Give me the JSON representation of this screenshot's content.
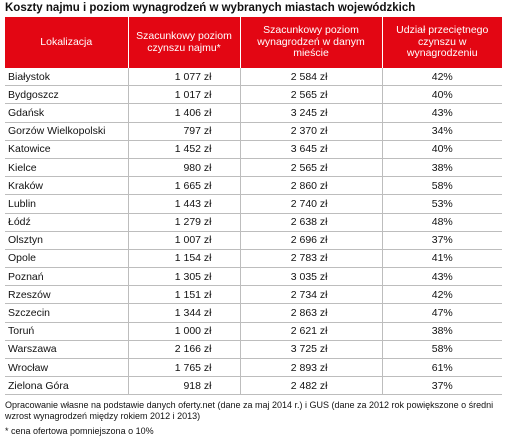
{
  "title": "Koszty najmu i poziom wynagrodzeń w wybranych miastach wojewódzkich",
  "colors": {
    "header_bg": "#e30613",
    "header_text": "#ffffff",
    "row_border": "#bdbdbd"
  },
  "table": {
    "headers": [
      "Lokalizacja",
      "Szacunkowy poziom czynszu najmu*",
      "Szacunkowy poziom wynagrodzeń w danym mieście",
      "Udział przeciętnego czynszu w wynagrodzeniu"
    ],
    "rows": [
      {
        "city": "Białystok",
        "rent": "1 077 zł",
        "wage": "2 584 zł",
        "share": "42%"
      },
      {
        "city": "Bydgoszcz",
        "rent": "1 017 zł",
        "wage": "2 565 zł",
        "share": "40%"
      },
      {
        "city": "Gdańsk",
        "rent": "1 406 zł",
        "wage": "3 245 zł",
        "share": "43%"
      },
      {
        "city": "Gorzów Wielkopolski",
        "rent": "797 zł",
        "wage": "2 370 zł",
        "share": "34%"
      },
      {
        "city": "Katowice",
        "rent": "1 452 zł",
        "wage": "3 645 zł",
        "share": "40%"
      },
      {
        "city": "Kielce",
        "rent": "980 zł",
        "wage": "2 565 zł",
        "share": "38%"
      },
      {
        "city": "Kraków",
        "rent": "1 665 zł",
        "wage": "2 860 zł",
        "share": "58%"
      },
      {
        "city": "Lublin",
        "rent": "1 443 zł",
        "wage": "2 740 zł",
        "share": "53%"
      },
      {
        "city": "Łódź",
        "rent": "1 279 zł",
        "wage": "2 638 zł",
        "share": "48%"
      },
      {
        "city": "Olsztyn",
        "rent": "1 007 zł",
        "wage": "2 696 zł",
        "share": "37%"
      },
      {
        "city": "Opole",
        "rent": "1 154 zł",
        "wage": "2 783 zł",
        "share": "41%"
      },
      {
        "city": "Poznań",
        "rent": "1 305 zł",
        "wage": "3 035 zł",
        "share": "43%"
      },
      {
        "city": "Rzeszów",
        "rent": "1 151 zł",
        "wage": "2 734 zł",
        "share": "42%"
      },
      {
        "city": "Szczecin",
        "rent": "1 344 zł",
        "wage": "2 863 zł",
        "share": "47%"
      },
      {
        "city": "Toruń",
        "rent": "1 000 zł",
        "wage": "2 621 zł",
        "share": "38%"
      },
      {
        "city": "Warszawa",
        "rent": "2 166 zł",
        "wage": "3 725 zł",
        "share": "58%"
      },
      {
        "city": "Wrocław",
        "rent": "1 765 zł",
        "wage": "2 893 zł",
        "share": "61%"
      },
      {
        "city": "Zielona Góra",
        "rent": "918 zł",
        "wage": "2 482 zł",
        "share": "37%"
      }
    ]
  },
  "notes": {
    "source": "Opracowanie własne na podstawie danych oferty.net (dane za maj 2014 r.) i GUS (dane za 2012 rok powiększone o średni wzrost wynagrodzeń między rokiem 2012 i 2013)",
    "footnote": "* cena ofertowa pomniejszona o 10%"
  }
}
